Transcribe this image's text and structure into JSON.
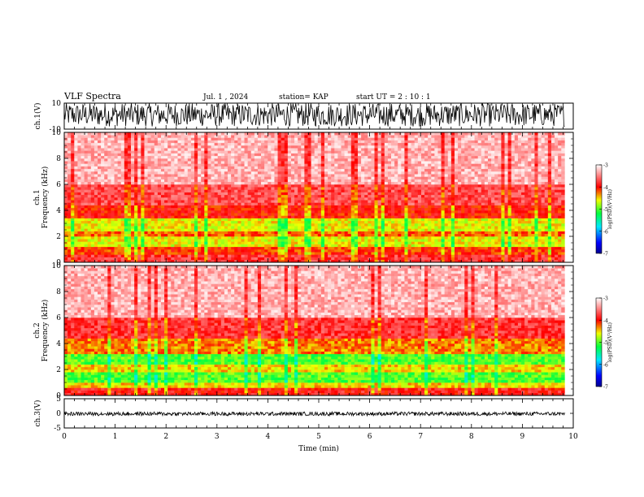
{
  "header": {
    "title": "VLF Spectra",
    "date": "Jul. 1 , 2024",
    "station": "station= KAP",
    "start": "start UT = 2 : 10 : 1"
  },
  "chart_data": [
    {
      "type": "line",
      "panel": "ch1-waveform",
      "ylabel": "ch.1(V)",
      "ylim": [
        -10,
        10
      ],
      "y_tick_labels": [
        "10",
        "-10"
      ],
      "x_range_min": [
        0,
        9.83
      ],
      "x_max": 10,
      "amplitude_envelope": [
        -8,
        10
      ],
      "color": "#000000"
    },
    {
      "type": "heatmap",
      "panel": "ch1-spectrogram",
      "ylabel": "ch.1\nFrequency (kHz)",
      "ylim": [
        0,
        10
      ],
      "y_ticks": [
        0,
        2,
        4,
        6,
        8,
        10
      ],
      "x_range_min": [
        0,
        9.83
      ],
      "colorbar": {
        "label": "log(PSD)(V²/Hz)",
        "range": [
          -7,
          -3
        ],
        "ticks": [
          -7,
          -6,
          -5,
          -4,
          -3
        ]
      },
      "bands": [
        {
          "f_low": 0.0,
          "f_high": 0.6,
          "level": -3.8
        },
        {
          "f_low": 0.6,
          "f_high": 1.2,
          "level": -4.1
        },
        {
          "f_low": 1.2,
          "f_high": 2.0,
          "level": -4.6
        },
        {
          "f_low": 2.0,
          "f_high": 2.4,
          "level": -4.2
        },
        {
          "f_low": 2.4,
          "f_high": 3.5,
          "level": -4.6
        },
        {
          "f_low": 3.5,
          "f_high": 4.4,
          "level": -4.0
        },
        {
          "f_low": 4.4,
          "f_high": 6.0,
          "level": -3.7
        },
        {
          "f_low": 6.0,
          "f_high": 10.0,
          "level": -3.3
        }
      ]
    },
    {
      "type": "heatmap",
      "panel": "ch2-spectrogram",
      "ylabel": "ch.2\nFrequency (kHz)",
      "ylim": [
        0,
        10
      ],
      "y_ticks": [
        0,
        2,
        4,
        6,
        8,
        10
      ],
      "x_range_min": [
        0,
        9.83
      ],
      "colorbar": {
        "label": "log(PSD)(V²/Hz)",
        "range": [
          -7,
          -3
        ],
        "ticks": [
          -7,
          -6,
          -5,
          -4,
          -3
        ]
      },
      "bands": [
        {
          "f_low": 0.0,
          "f_high": 0.6,
          "level": -3.9
        },
        {
          "f_low": 0.6,
          "f_high": 1.0,
          "level": -4.5
        },
        {
          "f_low": 1.0,
          "f_high": 1.8,
          "level": -5.0
        },
        {
          "f_low": 1.8,
          "f_high": 2.5,
          "level": -4.5
        },
        {
          "f_low": 2.5,
          "f_high": 3.2,
          "level": -5.0
        },
        {
          "f_low": 3.2,
          "f_high": 4.5,
          "level": -4.3
        },
        {
          "f_low": 4.5,
          "f_high": 6.0,
          "level": -3.8
        },
        {
          "f_low": 6.0,
          "f_high": 10.0,
          "level": -3.3
        }
      ]
    },
    {
      "type": "line",
      "panel": "ch3-waveform",
      "ylabel": "ch.3(V)",
      "ylim": [
        -5,
        5
      ],
      "y_tick_labels": [
        "5",
        "0",
        "-5"
      ],
      "x_range_min": [
        0,
        9.83
      ],
      "amplitude_envelope": [
        -0.8,
        0.5
      ],
      "color": "#000000"
    }
  ],
  "x_axis": {
    "xlabel": "Time (min)",
    "xlim": [
      0,
      10
    ],
    "tick_labels": [
      "0",
      "1",
      "2",
      "3",
      "4",
      "5",
      "6",
      "7",
      "8",
      "9",
      "10"
    ]
  },
  "colors": {
    "colorscale": [
      "#000090",
      "#0000ff",
      "#00e8ff",
      "#00ff40",
      "#f0ff00",
      "#ff0000",
      "#ffffff"
    ],
    "trace": "#000000"
  }
}
